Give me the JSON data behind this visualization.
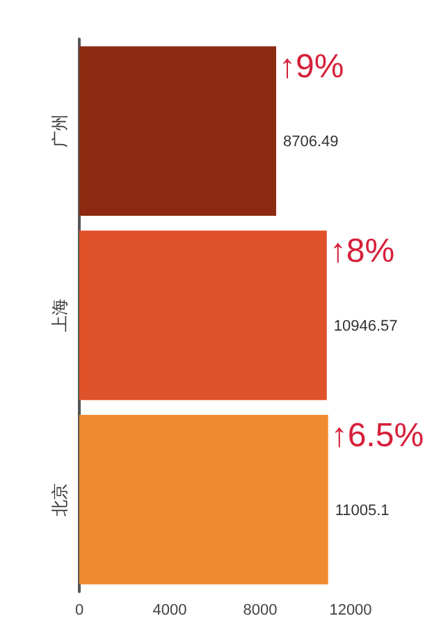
{
  "chart_data": {
    "type": "bar",
    "orientation": "horizontal",
    "categories": [
      "广州",
      "上海",
      "北京"
    ],
    "values": [
      8706.49,
      10946.57,
      11005.1
    ],
    "colors": [
      "#8b2a10",
      "#e0522a",
      "#f08a30"
    ],
    "xlim": [
      0,
      12000
    ],
    "xticks": [
      0,
      4000,
      8000,
      12000
    ],
    "data_labels": true,
    "grid": false,
    "annotations": [
      {
        "text": "↑9%",
        "x": 8706.49,
        "y": "广州"
      },
      {
        "text": "↑8%",
        "x": 10946.57,
        "y": "上海"
      },
      {
        "text": "↑6.5%",
        "x": 11005.1,
        "y": "北京"
      }
    ]
  }
}
